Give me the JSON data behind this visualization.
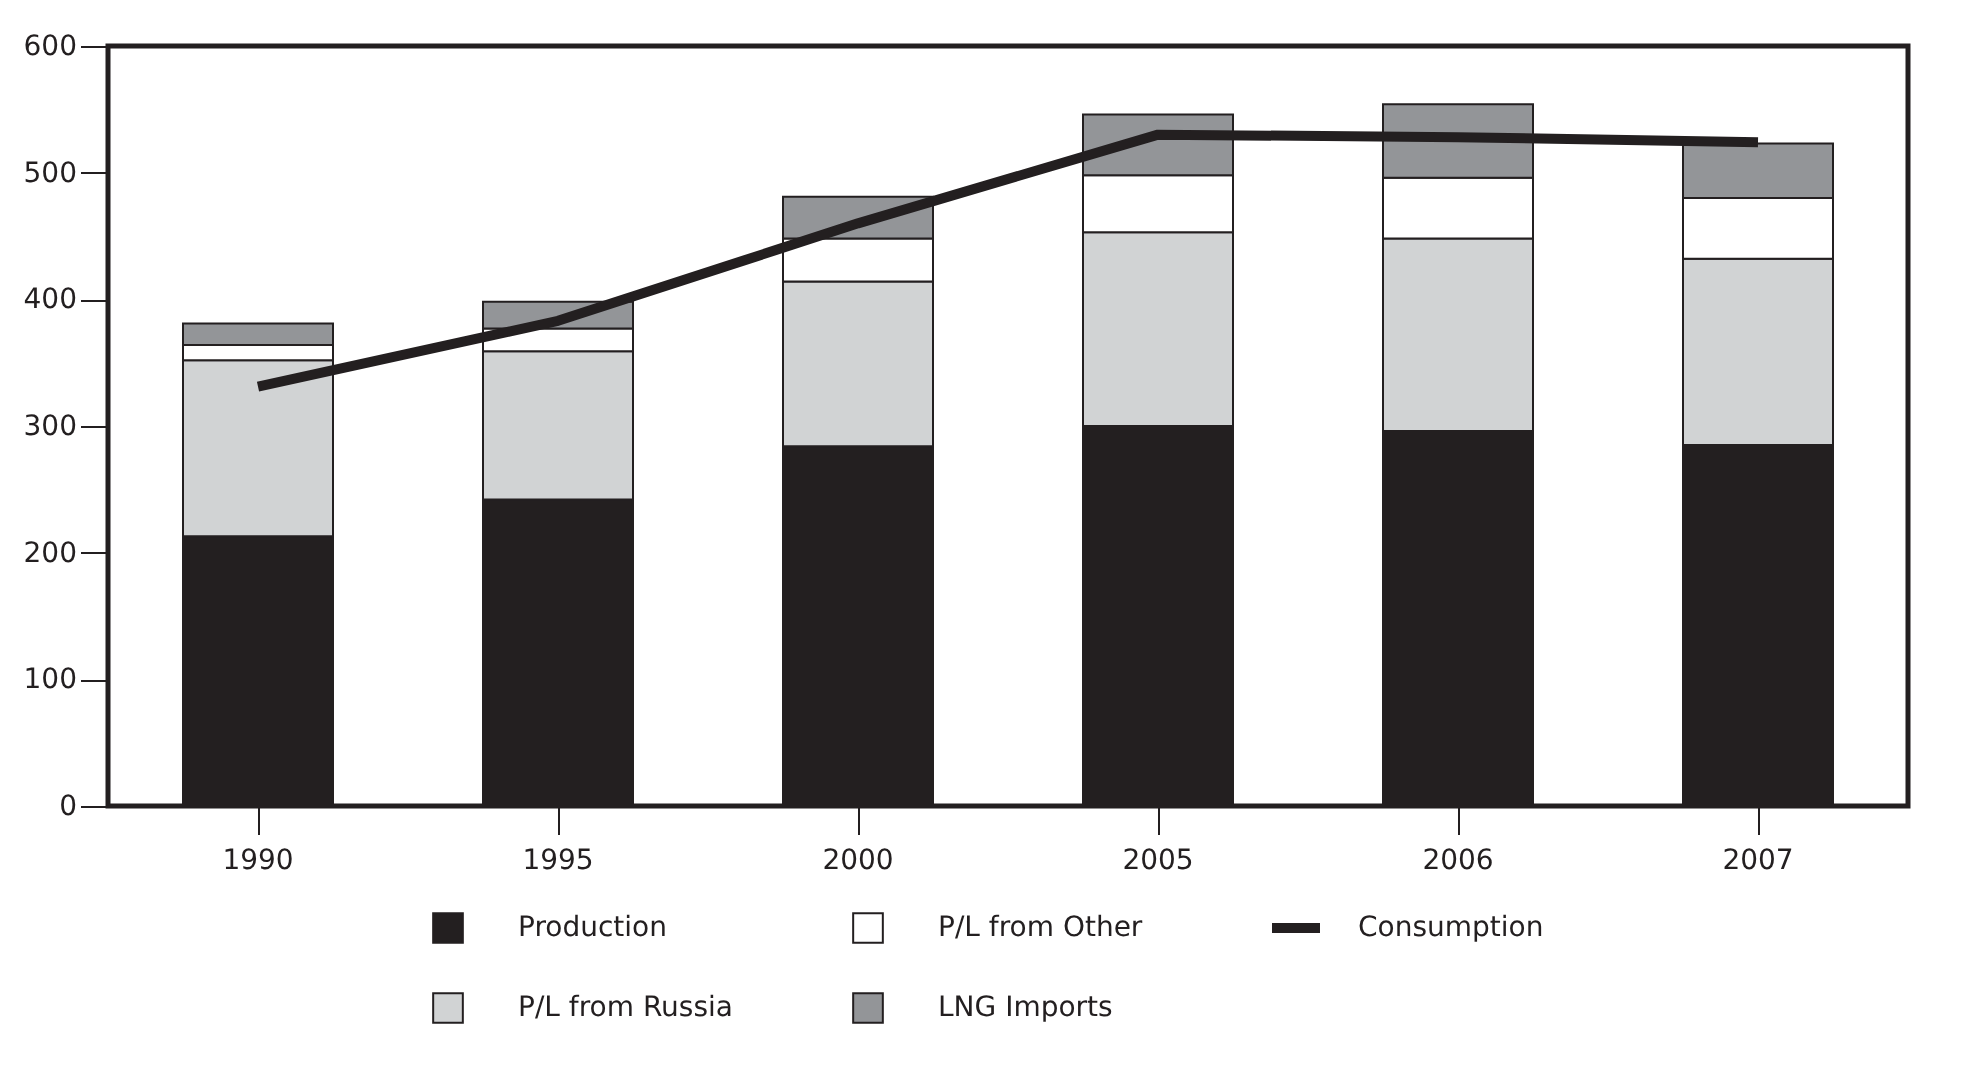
{
  "chart_data": {
    "type": "bar",
    "stacked": true,
    "categories": [
      "1990",
      "1995",
      "2000",
      "2005",
      "2006",
      "2007"
    ],
    "series": [
      {
        "name": "Production",
        "color": "#231f20",
        "values": [
          213,
          242,
          284,
          300,
          296,
          285
        ]
      },
      {
        "name": "P/L from Russia",
        "color": "#d1d3d4",
        "values": [
          139,
          117,
          130,
          153,
          152,
          147
        ]
      },
      {
        "name": "P/L from Other",
        "color": "#ffffff",
        "values": [
          12,
          18,
          34,
          45,
          48,
          48
        ]
      },
      {
        "name": "LNG Imports",
        "color": "#939598",
        "values": [
          17,
          21,
          33,
          48,
          58,
          43
        ]
      },
      {
        "name": "Consumption",
        "type": "line",
        "color": "#231f20",
        "values": [
          331,
          383,
          460,
          530,
          528,
          524
        ]
      }
    ],
    "ylim": [
      0,
      600
    ],
    "yticks": [
      0,
      100,
      200,
      300,
      400,
      500,
      600
    ],
    "grid": false,
    "legend": "bottom"
  }
}
